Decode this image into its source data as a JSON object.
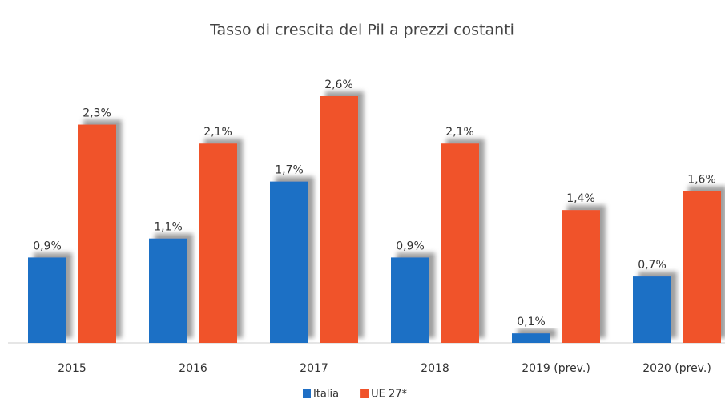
{
  "chart_data": {
    "type": "bar",
    "title": "Tasso di crescita del Pil a prezzi costanti",
    "categories": [
      "2015",
      "2016",
      "2017",
      "2018",
      "2019 (prev.)",
      "2020 (prev.)"
    ],
    "series": [
      {
        "name": "Italia",
        "color": "#1f6fc5",
        "values": [
          0.9,
          1.1,
          1.7,
          0.9,
          0.1,
          0.7
        ],
        "value_labels": [
          "0,9%",
          "1,1%",
          "1,7%",
          "0,9%",
          "0,1%",
          "0,7%"
        ]
      },
      {
        "name": "UE 27*",
        "color": "#f0522a",
        "values": [
          2.3,
          2.1,
          2.6,
          2.1,
          1.4,
          1.6
        ],
        "value_labels": [
          "2,3%",
          "2,1%",
          "2,6%",
          "2,1%",
          "1,4%",
          "1,6%"
        ]
      }
    ],
    "legend": "bottom"
  }
}
